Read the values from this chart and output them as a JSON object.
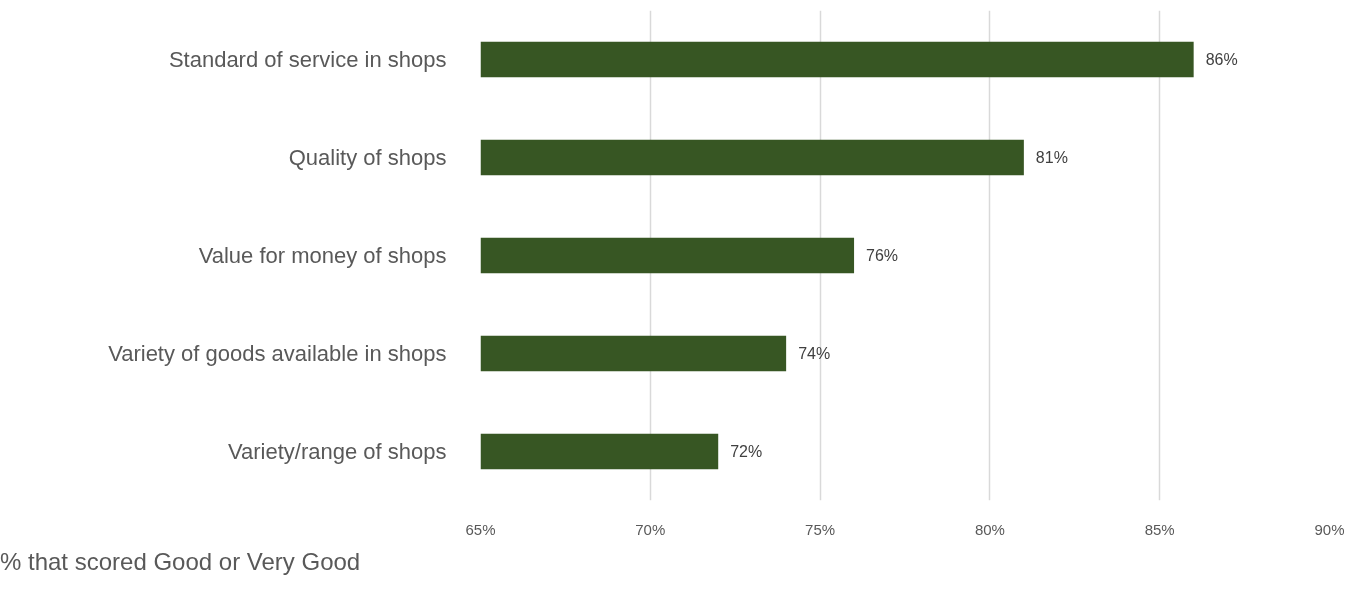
{
  "chart_data": {
    "type": "bar",
    "orientation": "horizontal",
    "categories": [
      "Standard of service in shops",
      "Quality of shops",
      "Value for money of shops",
      "Variety of goods available in shops",
      "Variety/range of shops"
    ],
    "values": [
      86,
      81,
      76,
      74,
      72
    ],
    "value_labels": [
      "86%",
      "81%",
      "76%",
      "74%",
      "72%"
    ],
    "color": "#375623",
    "xlim": [
      65,
      90
    ],
    "xticks": [
      {
        "value": 65,
        "label": "65%"
      },
      {
        "value": 70,
        "label": "70%"
      },
      {
        "value": 75,
        "label": "75%"
      },
      {
        "value": 80,
        "label": "80%"
      },
      {
        "value": 85,
        "label": "85%"
      },
      {
        "value": 90,
        "label": "90%"
      }
    ],
    "grid": "x",
    "annotations": [
      "% that scored Good or Very Good"
    ]
  }
}
